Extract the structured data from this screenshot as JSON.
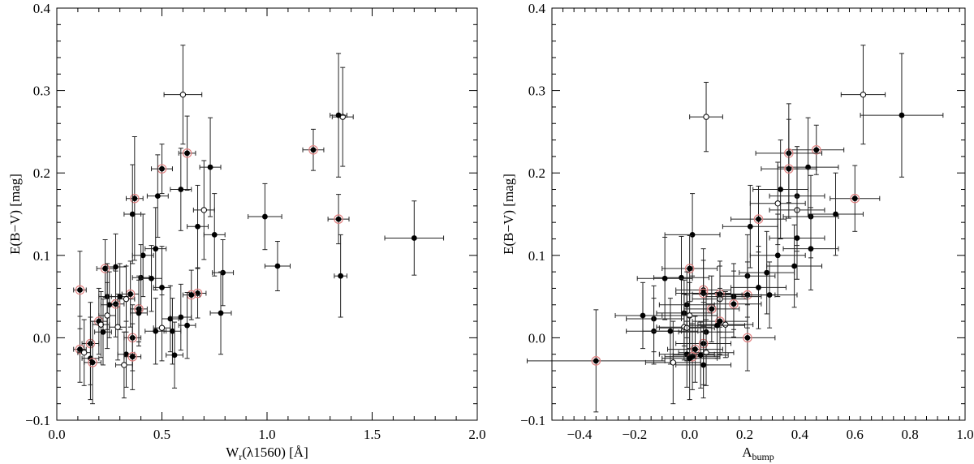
{
  "chart_data": [
    {
      "type": "scatter",
      "xlabel": "W_r(λ1560) [Å]",
      "ylabel": "E(B−V) [mag]",
      "xlim": [
        0.0,
        2.0
      ],
      "ylim": [
        -0.1,
        0.4
      ],
      "x_ticks": [
        0.0,
        0.5,
        1.0,
        1.5,
        2.0
      ],
      "x_tick_labels": [
        "0.0",
        "0.5",
        "1.0",
        "1.5",
        "2.0"
      ],
      "y_ticks": [
        -0.1,
        0.0,
        0.1,
        0.2,
        0.3,
        0.4
      ],
      "y_tick_labels": [
        "−0.1",
        "0.0",
        "0.1",
        "0.2",
        "0.3",
        "0.4"
      ],
      "points": [
        {
          "x": 0.6,
          "y": 0.295,
          "xerr": 0.09,
          "yerr": 0.06,
          "m": "o"
        },
        {
          "x": 1.36,
          "y": 0.268,
          "xerr": 0.05,
          "yerr": 0.06,
          "m": "o"
        },
        {
          "x": 1.34,
          "y": 0.27,
          "xerr": 0.04,
          "yerr": 0.075,
          "m": "f"
        },
        {
          "x": 1.22,
          "y": 0.228,
          "xerr": 0.05,
          "yerr": 0.025,
          "m": "r"
        },
        {
          "x": 0.62,
          "y": 0.224,
          "xerr": 0.04,
          "yerr": 0.045,
          "m": "r"
        },
        {
          "x": 0.5,
          "y": 0.205,
          "xerr": 0.05,
          "yerr": 0.03,
          "m": "r"
        },
        {
          "x": 0.73,
          "y": 0.207,
          "xerr": 0.05,
          "yerr": 0.06,
          "m": "f"
        },
        {
          "x": 0.59,
          "y": 0.18,
          "xerr": 0.05,
          "yerr": 0.05,
          "m": "f"
        },
        {
          "x": 0.48,
          "y": 0.172,
          "xerr": 0.05,
          "yerr": 0.05,
          "m": "f"
        },
        {
          "x": 0.37,
          "y": 0.169,
          "xerr": 0.04,
          "yerr": 0.075,
          "m": "r"
        },
        {
          "x": 0.7,
          "y": 0.155,
          "xerr": 0.05,
          "yerr": 0.06,
          "m": "o"
        },
        {
          "x": 0.36,
          "y": 0.15,
          "xerr": 0.04,
          "yerr": 0.06,
          "m": "f"
        },
        {
          "x": 0.99,
          "y": 0.147,
          "xerr": 0.08,
          "yerr": 0.04,
          "m": "f"
        },
        {
          "x": 1.34,
          "y": 0.144,
          "xerr": 0.05,
          "yerr": 0.03,
          "m": "r"
        },
        {
          "x": 0.67,
          "y": 0.135,
          "xerr": 0.05,
          "yerr": 0.05,
          "m": "f"
        },
        {
          "x": 0.75,
          "y": 0.125,
          "xerr": 0.05,
          "yerr": 0.05,
          "m": "f"
        },
        {
          "x": 1.7,
          "y": 0.121,
          "xerr": 0.14,
          "yerr": 0.045,
          "m": "f"
        },
        {
          "x": 0.47,
          "y": 0.108,
          "xerr": 0.05,
          "yerr": 0.05,
          "m": "f"
        },
        {
          "x": 0.41,
          "y": 0.1,
          "xerr": 0.05,
          "yerr": 0.05,
          "m": "f"
        },
        {
          "x": 1.05,
          "y": 0.087,
          "xerr": 0.06,
          "yerr": 0.03,
          "m": "f"
        },
        {
          "x": 0.28,
          "y": 0.086,
          "xerr": 0.05,
          "yerr": 0.04,
          "m": "f"
        },
        {
          "x": 0.23,
          "y": 0.084,
          "xerr": 0.04,
          "yerr": 0.035,
          "m": "r"
        },
        {
          "x": 0.79,
          "y": 0.079,
          "xerr": 0.05,
          "yerr": 0.04,
          "m": "f"
        },
        {
          "x": 1.35,
          "y": 0.075,
          "xerr": 0.03,
          "yerr": 0.05,
          "m": "f"
        },
        {
          "x": 0.4,
          "y": 0.073,
          "xerr": 0.04,
          "yerr": 0.04,
          "m": "f"
        },
        {
          "x": 0.45,
          "y": 0.072,
          "xerr": 0.05,
          "yerr": 0.04,
          "m": "f"
        },
        {
          "x": 0.5,
          "y": 0.061,
          "xerr": 0.04,
          "yerr": 0.05,
          "m": "f"
        },
        {
          "x": 0.11,
          "y": 0.058,
          "xerr": 0.03,
          "yerr": 0.047,
          "m": "r"
        },
        {
          "x": 0.67,
          "y": 0.054,
          "xerr": 0.04,
          "yerr": 0.03,
          "m": "r"
        },
        {
          "x": 0.64,
          "y": 0.052,
          "xerr": 0.04,
          "yerr": 0.03,
          "m": "r"
        },
        {
          "x": 0.35,
          "y": 0.053,
          "xerr": 0.04,
          "yerr": 0.04,
          "m": "r"
        },
        {
          "x": 0.3,
          "y": 0.05,
          "xerr": 0.04,
          "yerr": 0.04,
          "m": "f"
        },
        {
          "x": 0.24,
          "y": 0.05,
          "xerr": 0.04,
          "yerr": 0.04,
          "m": "f"
        },
        {
          "x": 0.33,
          "y": 0.047,
          "xerr": 0.04,
          "yerr": 0.04,
          "m": "o"
        },
        {
          "x": 0.28,
          "y": 0.041,
          "xerr": 0.04,
          "yerr": 0.04,
          "m": "r"
        },
        {
          "x": 0.25,
          "y": 0.04,
          "xerr": 0.04,
          "yerr": 0.04,
          "m": "f"
        },
        {
          "x": 0.39,
          "y": 0.035,
          "xerr": 0.04,
          "yerr": 0.04,
          "m": "r"
        },
        {
          "x": 0.39,
          "y": 0.03,
          "xerr": 0.04,
          "yerr": 0.04,
          "m": "f"
        },
        {
          "x": 0.78,
          "y": 0.03,
          "xerr": 0.05,
          "yerr": 0.05,
          "m": "f"
        },
        {
          "x": 0.24,
          "y": 0.027,
          "xerr": 0.04,
          "yerr": 0.04,
          "m": "o"
        },
        {
          "x": 0.59,
          "y": 0.025,
          "xerr": 0.05,
          "yerr": 0.04,
          "m": "f"
        },
        {
          "x": 0.54,
          "y": 0.023,
          "xerr": 0.04,
          "yerr": 0.04,
          "m": "f"
        },
        {
          "x": 0.2,
          "y": 0.02,
          "xerr": 0.04,
          "yerr": 0.04,
          "m": "r"
        },
        {
          "x": 0.21,
          "y": 0.016,
          "xerr": 0.04,
          "yerr": 0.04,
          "m": "o"
        },
        {
          "x": 0.62,
          "y": 0.015,
          "xerr": 0.04,
          "yerr": 0.04,
          "m": "f"
        },
        {
          "x": 0.29,
          "y": 0.013,
          "xerr": 0.04,
          "yerr": 0.04,
          "m": "o"
        },
        {
          "x": 0.5,
          "y": 0.012,
          "xerr": 0.04,
          "yerr": 0.04,
          "m": "o"
        },
        {
          "x": 0.47,
          "y": 0.008,
          "xerr": 0.05,
          "yerr": 0.04,
          "m": "f"
        },
        {
          "x": 0.55,
          "y": 0.008,
          "xerr": 0.04,
          "yerr": 0.04,
          "m": "f"
        },
        {
          "x": 0.22,
          "y": 0.007,
          "xerr": 0.04,
          "yerr": 0.04,
          "m": "f"
        },
        {
          "x": 0.36,
          "y": 0.0,
          "xerr": 0.04,
          "yerr": 0.04,
          "m": "r"
        },
        {
          "x": 0.16,
          "y": -0.007,
          "xerr": 0.04,
          "yerr": 0.05,
          "m": "r"
        },
        {
          "x": 0.11,
          "y": -0.014,
          "xerr": 0.03,
          "yerr": 0.04,
          "m": "r"
        },
        {
          "x": 0.13,
          "y": -0.018,
          "xerr": 0.03,
          "yerr": 0.04,
          "m": "o"
        },
        {
          "x": 0.33,
          "y": -0.02,
          "xerr": 0.04,
          "yerr": 0.04,
          "m": "f"
        },
        {
          "x": 0.56,
          "y": -0.021,
          "xerr": 0.04,
          "yerr": 0.04,
          "m": "f"
        },
        {
          "x": 0.36,
          "y": -0.023,
          "xerr": 0.04,
          "yerr": 0.04,
          "m": "r"
        },
        {
          "x": 0.16,
          "y": -0.025,
          "xerr": 0.04,
          "yerr": 0.05,
          "m": "f"
        },
        {
          "x": 0.17,
          "y": -0.03,
          "xerr": 0.04,
          "yerr": 0.05,
          "m": "r"
        },
        {
          "x": 0.32,
          "y": -0.033,
          "xerr": 0.04,
          "yerr": 0.04,
          "m": "o"
        }
      ]
    },
    {
      "type": "scatter",
      "xlabel": "A_bump",
      "ylabel": "E(B−V) [mag]",
      "xlim": [
        -0.5,
        1.0
      ],
      "ylim": [
        -0.1,
        0.4
      ],
      "x_ticks": [
        -0.4,
        -0.2,
        0.0,
        0.2,
        0.4,
        0.6,
        0.8,
        1.0
      ],
      "x_tick_labels": [
        "−0.4",
        "−0.2",
        "0.0",
        "0.2",
        "0.4",
        "0.6",
        "0.8",
        "1.0"
      ],
      "y_ticks": [
        -0.1,
        0.0,
        0.1,
        0.2,
        0.3,
        0.4
      ],
      "y_tick_labels": [
        "−0.1",
        "0.0",
        "0.1",
        "0.2",
        "0.3",
        "0.4"
      ],
      "points": [
        {
          "x": 0.63,
          "y": 0.295,
          "xerr": 0.08,
          "yerr": 0.06,
          "m": "o"
        },
        {
          "x": 0.06,
          "y": 0.268,
          "xerr": 0.06,
          "yerr": 0.042,
          "m": "o"
        },
        {
          "x": 0.77,
          "y": 0.27,
          "xerr": 0.15,
          "yerr": 0.075,
          "m": "f"
        },
        {
          "x": 0.46,
          "y": 0.228,
          "xerr": 0.1,
          "yerr": 0.03,
          "m": "r"
        },
        {
          "x": 0.36,
          "y": 0.224,
          "xerr": 0.12,
          "yerr": 0.06,
          "m": "r"
        },
        {
          "x": 0.43,
          "y": 0.207,
          "xerr": 0.11,
          "yerr": 0.06,
          "m": "f"
        },
        {
          "x": 0.36,
          "y": 0.205,
          "xerr": 0.1,
          "yerr": 0.06,
          "m": "r"
        },
        {
          "x": 0.33,
          "y": 0.18,
          "xerr": 0.1,
          "yerr": 0.06,
          "m": "f"
        },
        {
          "x": 0.6,
          "y": 0.169,
          "xerr": 0.09,
          "yerr": 0.04,
          "m": "r"
        },
        {
          "x": 0.39,
          "y": 0.172,
          "xerr": 0.1,
          "yerr": 0.06,
          "m": "f"
        },
        {
          "x": 0.32,
          "y": 0.163,
          "xerr": 0.1,
          "yerr": 0.05,
          "m": "o"
        },
        {
          "x": 0.39,
          "y": 0.155,
          "xerr": 0.1,
          "yerr": 0.05,
          "m": "o"
        },
        {
          "x": 0.53,
          "y": 0.15,
          "xerr": 0.1,
          "yerr": 0.05,
          "m": "f"
        },
        {
          "x": 0.44,
          "y": 0.147,
          "xerr": 0.1,
          "yerr": 0.05,
          "m": "f"
        },
        {
          "x": 0.25,
          "y": 0.144,
          "xerr": 0.1,
          "yerr": 0.04,
          "m": "r"
        },
        {
          "x": 0.22,
          "y": 0.135,
          "xerr": 0.1,
          "yerr": 0.05,
          "m": "f"
        },
        {
          "x": 0.01,
          "y": 0.125,
          "xerr": 0.1,
          "yerr": 0.05,
          "m": "f"
        },
        {
          "x": 0.39,
          "y": 0.121,
          "xerr": 0.1,
          "yerr": 0.05,
          "m": "f"
        },
        {
          "x": 0.44,
          "y": 0.108,
          "xerr": 0.1,
          "yerr": 0.05,
          "m": "f"
        },
        {
          "x": 0.32,
          "y": 0.1,
          "xerr": 0.1,
          "yerr": 0.05,
          "m": "f"
        },
        {
          "x": 0.38,
          "y": 0.087,
          "xerr": 0.1,
          "yerr": 0.05,
          "m": "f"
        },
        {
          "x": 0.0,
          "y": 0.084,
          "xerr": 0.1,
          "yerr": 0.04,
          "m": "r"
        },
        {
          "x": 0.28,
          "y": 0.079,
          "xerr": 0.1,
          "yerr": 0.05,
          "m": "f"
        },
        {
          "x": 0.21,
          "y": 0.075,
          "xerr": 0.1,
          "yerr": 0.05,
          "m": "f"
        },
        {
          "x": -0.03,
          "y": 0.073,
          "xerr": 0.1,
          "yerr": 0.05,
          "m": "f"
        },
        {
          "x": -0.09,
          "y": 0.072,
          "xerr": 0.1,
          "yerr": 0.05,
          "m": "f"
        },
        {
          "x": 0.25,
          "y": 0.061,
          "xerr": 0.1,
          "yerr": 0.05,
          "m": "f"
        },
        {
          "x": 0.05,
          "y": 0.058,
          "xerr": 0.1,
          "yerr": 0.05,
          "m": "r"
        },
        {
          "x": 0.05,
          "y": 0.054,
          "xerr": 0.1,
          "yerr": 0.04,
          "m": "r"
        },
        {
          "x": 0.11,
          "y": 0.053,
          "xerr": 0.1,
          "yerr": 0.04,
          "m": "r"
        },
        {
          "x": 0.21,
          "y": 0.052,
          "xerr": 0.1,
          "yerr": 0.04,
          "m": "r"
        },
        {
          "x": 0.29,
          "y": 0.052,
          "xerr": 0.1,
          "yerr": 0.04,
          "m": "f"
        },
        {
          "x": 0.16,
          "y": 0.05,
          "xerr": 0.1,
          "yerr": 0.04,
          "m": "f"
        },
        {
          "x": 0.11,
          "y": 0.047,
          "xerr": 0.1,
          "yerr": 0.04,
          "m": "o"
        },
        {
          "x": 0.16,
          "y": 0.041,
          "xerr": 0.1,
          "yerr": 0.04,
          "m": "r"
        },
        {
          "x": 0.08,
          "y": 0.035,
          "xerr": 0.1,
          "yerr": 0.04,
          "m": "r"
        },
        {
          "x": -0.01,
          "y": 0.04,
          "xerr": 0.1,
          "yerr": 0.04,
          "m": "f"
        },
        {
          "x": -0.02,
          "y": 0.03,
          "xerr": 0.1,
          "yerr": 0.04,
          "m": "f"
        },
        {
          "x": 0.0,
          "y": 0.027,
          "xerr": 0.1,
          "yerr": 0.04,
          "m": "o"
        },
        {
          "x": -0.17,
          "y": 0.027,
          "xerr": 0.1,
          "yerr": 0.04,
          "m": "f"
        },
        {
          "x": -0.13,
          "y": 0.023,
          "xerr": 0.1,
          "yerr": 0.04,
          "m": "f"
        },
        {
          "x": 0.11,
          "y": 0.02,
          "xerr": 0.1,
          "yerr": 0.04,
          "m": "r"
        },
        {
          "x": 0.13,
          "y": 0.016,
          "xerr": 0.1,
          "yerr": 0.04,
          "m": "o"
        },
        {
          "x": 0.1,
          "y": 0.015,
          "xerr": 0.1,
          "yerr": 0.04,
          "m": "f"
        },
        {
          "x": -0.02,
          "y": 0.013,
          "xerr": 0.1,
          "yerr": 0.04,
          "m": "o"
        },
        {
          "x": -0.01,
          "y": 0.012,
          "xerr": 0.1,
          "yerr": 0.04,
          "m": "o"
        },
        {
          "x": -0.13,
          "y": 0.008,
          "xerr": 0.1,
          "yerr": 0.04,
          "m": "f"
        },
        {
          "x": -0.07,
          "y": 0.008,
          "xerr": 0.1,
          "yerr": 0.04,
          "m": "f"
        },
        {
          "x": 0.06,
          "y": 0.007,
          "xerr": 0.1,
          "yerr": 0.04,
          "m": "f"
        },
        {
          "x": 0.21,
          "y": 0.0,
          "xerr": 0.1,
          "yerr": 0.04,
          "m": "r"
        },
        {
          "x": 0.05,
          "y": -0.007,
          "xerr": 0.1,
          "yerr": 0.05,
          "m": "r"
        },
        {
          "x": 0.02,
          "y": -0.014,
          "xerr": 0.1,
          "yerr": 0.04,
          "m": "r"
        },
        {
          "x": 0.06,
          "y": -0.018,
          "xerr": 0.1,
          "yerr": 0.04,
          "m": "o"
        },
        {
          "x": -0.01,
          "y": -0.02,
          "xerr": 0.1,
          "yerr": 0.04,
          "m": "f"
        },
        {
          "x": 0.01,
          "y": -0.023,
          "xerr": 0.1,
          "yerr": 0.04,
          "m": "r"
        },
        {
          "x": 0.04,
          "y": -0.021,
          "xerr": 0.1,
          "yerr": 0.04,
          "m": "f"
        },
        {
          "x": 0.0,
          "y": -0.025,
          "xerr": 0.1,
          "yerr": 0.05,
          "m": "f"
        },
        {
          "x": -0.34,
          "y": -0.028,
          "xerr": 0.25,
          "yerr": 0.062,
          "m": "r"
        },
        {
          "x": 0.05,
          "y": -0.033,
          "xerr": 0.1,
          "yerr": 0.04,
          "m": "f"
        },
        {
          "x": -0.06,
          "y": -0.03,
          "xerr": 0.1,
          "yerr": 0.05,
          "m": "o"
        }
      ]
    }
  ]
}
